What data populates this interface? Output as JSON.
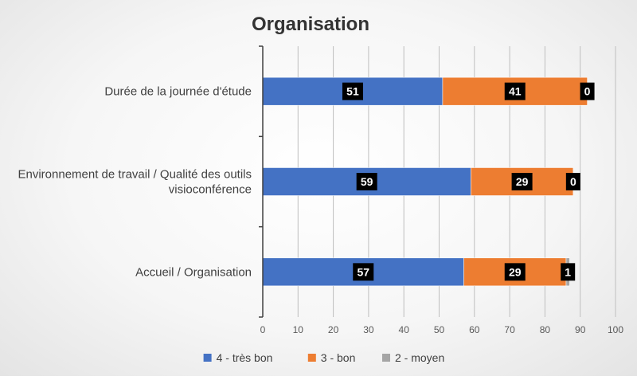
{
  "chart_data": {
    "type": "bar",
    "orientation": "horizontal",
    "stacked": true,
    "title": "Organisation",
    "categories": [
      [
        "Durée de la journée d'étude"
      ],
      [
        "Environnement de travail / Qualité des outils",
        "visioconférence"
      ],
      [
        "Accueil / Organisation"
      ]
    ],
    "series": [
      {
        "name": "4 - très bon",
        "color": "#4472C4",
        "values": [
          51,
          59,
          57
        ]
      },
      {
        "name": "3 - bon",
        "color": "#ED7D31",
        "values": [
          41,
          29,
          29
        ]
      },
      {
        "name": "2 - moyen",
        "color": "#A5A5A5",
        "values": [
          0,
          0,
          1
        ]
      }
    ],
    "xlim": [
      0,
      100
    ],
    "xticks": [
      0,
      10,
      20,
      30,
      40,
      50,
      60,
      70,
      80,
      90,
      100
    ],
    "grid": "vertical",
    "legend_position": "bottom",
    "data_label_background": "#000000"
  }
}
